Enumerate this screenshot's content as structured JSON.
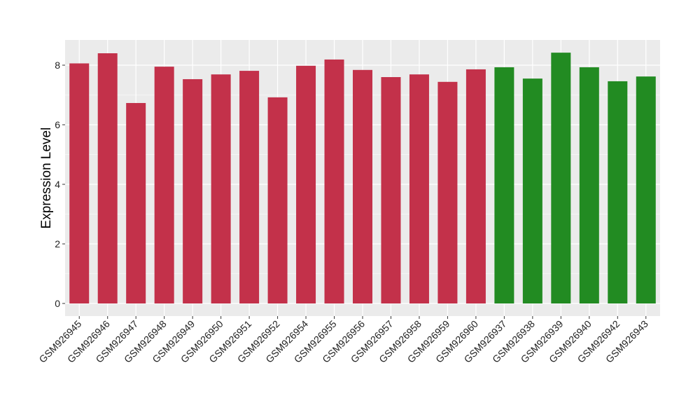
{
  "chart_data": {
    "type": "bar",
    "title": "",
    "xlabel": "",
    "ylabel": "Expression Level",
    "ylim": [
      -0.4,
      8.85
    ],
    "yticks": [
      0,
      2,
      4,
      6,
      8
    ],
    "grid": true,
    "legend": "none",
    "categories": [
      "GSM926945",
      "GSM926946",
      "GSM926947",
      "GSM926948",
      "GSM926949",
      "GSM926950",
      "GSM926951",
      "GSM926952",
      "GSM926954",
      "GSM926955",
      "GSM926956",
      "GSM926957",
      "GSM926958",
      "GSM926959",
      "GSM926960",
      "GSM926937",
      "GSM926938",
      "GSM926939",
      "GSM926940",
      "GSM926942",
      "GSM926943"
    ],
    "values": [
      8.06,
      8.4,
      6.73,
      7.95,
      7.53,
      7.69,
      7.81,
      6.92,
      7.98,
      8.19,
      7.84,
      7.6,
      7.69,
      7.44,
      7.86,
      7.93,
      7.55,
      8.42,
      7.93,
      7.46,
      7.62
    ],
    "bar_colors": [
      "#c3314a",
      "#c3314a",
      "#c3314a",
      "#c3314a",
      "#c3314a",
      "#c3314a",
      "#c3314a",
      "#c3314a",
      "#c3314a",
      "#c3314a",
      "#c3314a",
      "#c3314a",
      "#c3314a",
      "#c3314a",
      "#c3314a",
      "#228b22",
      "#228b22",
      "#228b22",
      "#228b22",
      "#228b22",
      "#228b22"
    ],
    "colors": {
      "panel": "#ebebeb",
      "grid": "#ffffff"
    }
  }
}
